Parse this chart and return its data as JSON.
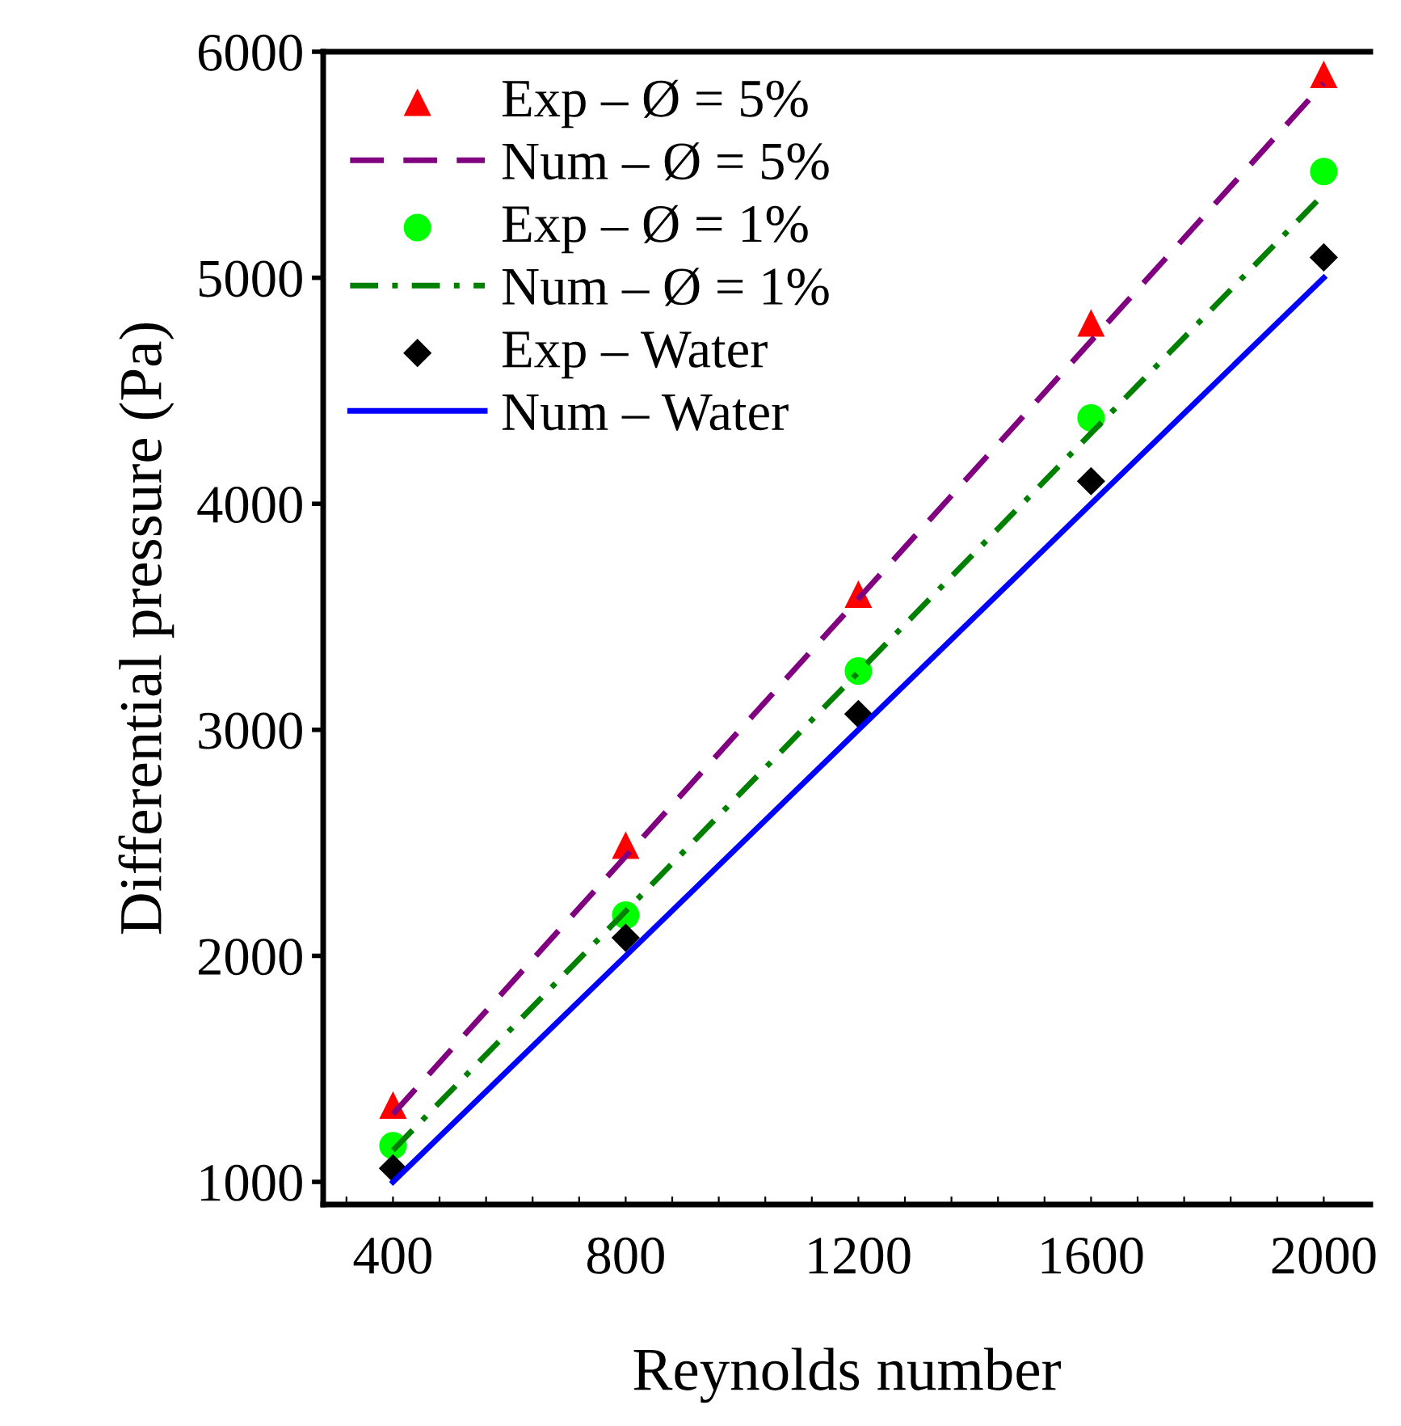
{
  "chart_data": {
    "type": "line",
    "xlabel": "Reynolds number",
    "ylabel": "Differential pressure (Pa)",
    "xlim": [
      280,
      2080
    ],
    "ylim": [
      900,
      6000
    ],
    "xticks": [
      {
        "value": 320,
        "label": null
      },
      400,
      {
        "value": 480,
        "label": null
      },
      {
        "value": 560,
        "label": null
      },
      {
        "value": 640,
        "label": null
      },
      {
        "value": 720,
        "label": null
      },
      800,
      {
        "value": 880,
        "label": null
      },
      {
        "value": 960,
        "label": null
      },
      {
        "value": 1040,
        "label": null
      },
      {
        "value": 1120,
        "label": null
      },
      1200,
      {
        "value": 1280,
        "label": null
      },
      {
        "value": 1360,
        "label": null
      },
      {
        "value": 1440,
        "label": null
      },
      {
        "value": 1520,
        "label": null
      },
      1600,
      {
        "value": 1680,
        "label": null
      },
      {
        "value": 1760,
        "label": null
      },
      {
        "value": 1840,
        "label": null
      },
      {
        "value": 1920,
        "label": null
      },
      2000
    ],
    "yticks": [
      1000,
      2000,
      3000,
      4000,
      5000,
      6000
    ],
    "grid": false,
    "legend": "top left",
    "series": [
      {
        "name": "Exp – Ø = 5%",
        "type": "scatter",
        "marker": "triangle",
        "color": "#ff0000",
        "x": [
          400,
          800,
          1200,
          1600,
          2000
        ],
        "values": [
          1340,
          2490,
          3600,
          4800,
          5900
        ]
      },
      {
        "name": "Num – Ø = 5%",
        "line_style": "dashed",
        "marker": "none",
        "color": "#800080",
        "x": [
          400,
          2000
        ],
        "values": [
          1300,
          5860
        ]
      },
      {
        "name": "Exp – Ø = 1%",
        "type": "scatter",
        "marker": "circle",
        "color": "#00ff00",
        "x": [
          400,
          800,
          1200,
          1600,
          2000
        ],
        "values": [
          1160,
          2180,
          3260,
          4380,
          5470
        ]
      },
      {
        "name": "Num – Ø = 1%",
        "line_style": "dashdot",
        "marker": "none",
        "color": "#008000",
        "x": [
          400,
          2000
        ],
        "values": [
          1140,
          5370
        ]
      },
      {
        "name": "Exp – Water",
        "type": "scatter",
        "marker": "diamond",
        "color": "#000000",
        "x": [
          400,
          800,
          1200,
          1600,
          2000
        ],
        "values": [
          1060,
          2080,
          3070,
          4100,
          5090
        ]
      },
      {
        "name": "Num – Water",
        "line_style": "solid",
        "marker": "none",
        "color": "#0000ff",
        "x": [
          400,
          2000
        ],
        "values": [
          1000,
          5000
        ]
      }
    ]
  }
}
